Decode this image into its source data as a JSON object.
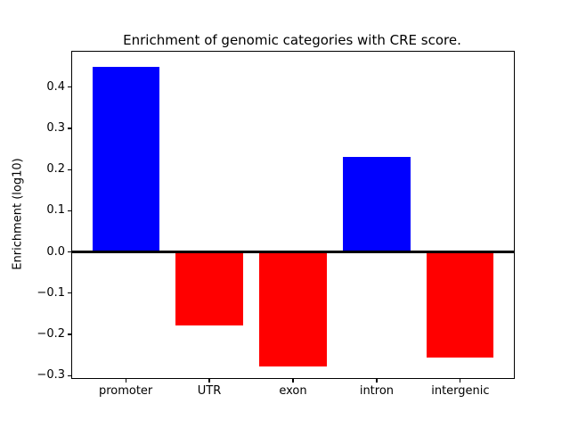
{
  "chart_data": {
    "type": "bar",
    "title": "Enrichment of genomic categories with CRE score.",
    "xlabel": "",
    "ylabel": "Enrichment (log10)",
    "categories": [
      "promoter",
      "UTR",
      "exon",
      "intron",
      "intergenic"
    ],
    "values": [
      0.45,
      -0.178,
      -0.277,
      0.23,
      -0.257
    ],
    "bar_colors": [
      "#0000ff",
      "#ff0000",
      "#ff0000",
      "#0000ff",
      "#ff0000"
    ],
    "positive_color": "#0000ff",
    "negative_color": "#ff0000",
    "bar_width": 0.8,
    "xlim": [
      -0.64,
      4.64
    ],
    "ylim": [
      -0.306,
      0.486
    ],
    "yticks": {
      "values": [
        -0.3,
        -0.2,
        -0.1,
        0.0,
        0.1,
        0.2,
        0.3,
        0.4
      ],
      "labels": [
        "−0.3",
        "−0.2",
        "−0.1",
        "0.0",
        "0.1",
        "0.2",
        "0.3",
        "0.4"
      ]
    },
    "zero_line": true,
    "grid": false,
    "legend": "none",
    "background_color": "#ffffff",
    "axis_color": "#000000"
  }
}
